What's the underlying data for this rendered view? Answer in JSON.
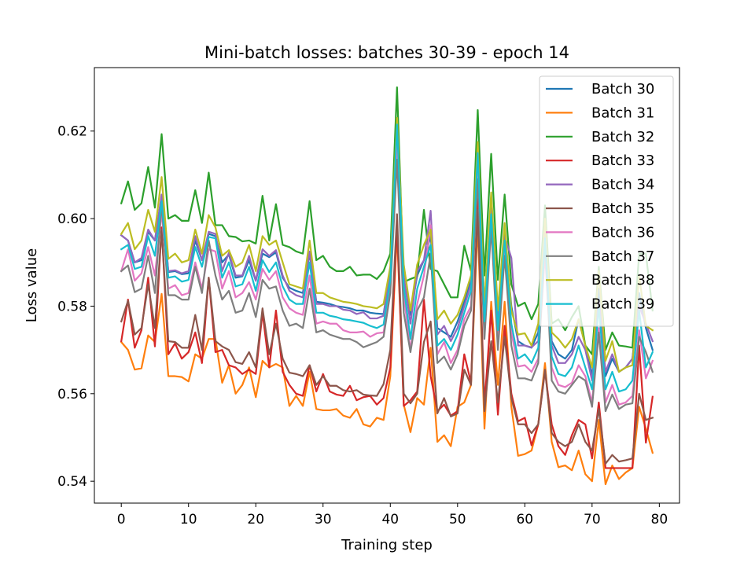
{
  "chart_data": {
    "type": "line",
    "title": "Mini-batch losses: batches 30-39 - epoch 14",
    "xlabel": "Training step",
    "ylabel": "Loss value",
    "xlim": [
      -4,
      83
    ],
    "ylim": [
      0.535,
      0.6345
    ],
    "xticks": [
      0,
      10,
      20,
      30,
      40,
      50,
      60,
      70,
      80
    ],
    "yticks": [
      0.54,
      0.56,
      0.58,
      0.6,
      0.62
    ],
    "ytick_labels": [
      "0.54",
      "0.56",
      "0.58",
      "0.60",
      "0.62"
    ],
    "legend_position": "top-right",
    "grid": false,
    "x": [
      0,
      1,
      2,
      3,
      4,
      5,
      6,
      7,
      8,
      9,
      10,
      11,
      12,
      13,
      14,
      15,
      16,
      17,
      18,
      19,
      20,
      21,
      22,
      23,
      24,
      25,
      26,
      27,
      28,
      29,
      30,
      31,
      32,
      33,
      34,
      35,
      36,
      37,
      38,
      39,
      40,
      41,
      42,
      43,
      44,
      45,
      46,
      47,
      48,
      49,
      50,
      51,
      52,
      53,
      54,
      55,
      56,
      57,
      58,
      59,
      60,
      61,
      62,
      63,
      64,
      65,
      66,
      67,
      68,
      69,
      70,
      71,
      72,
      73,
      74,
      75,
      76,
      77,
      78,
      79
    ],
    "series": [
      {
        "name": "Batch 30",
        "color": "#1f77b4",
        "values": [
          0.5962,
          0.595,
          0.59,
          0.5905,
          0.597,
          0.595,
          0.605,
          0.5878,
          0.588,
          0.5873,
          0.5875,
          0.595,
          0.5905,
          0.5965,
          0.596,
          0.59,
          0.5918,
          0.5865,
          0.5868,
          0.5905,
          0.5858,
          0.592,
          0.5912,
          0.5923,
          0.5865,
          0.5842,
          0.5835,
          0.583,
          0.592,
          0.581,
          0.5808,
          0.5805,
          0.58,
          0.5798,
          0.5795,
          0.579,
          0.579,
          0.5785,
          0.5783,
          0.5782,
          0.588,
          0.622,
          0.586,
          0.578,
          0.587,
          0.5905,
          0.596,
          0.575,
          0.574,
          0.573,
          0.5765,
          0.581,
          0.586,
          0.616,
          0.58,
          0.603,
          0.577,
          0.5965,
          0.58,
          0.572,
          0.571,
          0.5705,
          0.574,
          0.598,
          0.572,
          0.569,
          0.568,
          0.57,
          0.577,
          0.571,
          0.564,
          0.584,
          0.564,
          0.568,
          0.565,
          0.566,
          0.568,
          0.583,
          0.575,
          0.57
        ]
      },
      {
        "name": "Batch 31",
        "color": "#ff7f0e",
        "values": [
          0.5718,
          0.57,
          0.5655,
          0.5658,
          0.5733,
          0.5718,
          0.5828,
          0.564,
          0.564,
          0.5638,
          0.5628,
          0.569,
          0.568,
          0.5725,
          0.5725,
          0.5625,
          0.5665,
          0.56,
          0.562,
          0.566,
          0.5592,
          0.5675,
          0.566,
          0.5668,
          0.566,
          0.5572,
          0.5595,
          0.5572,
          0.565,
          0.5565,
          0.5562,
          0.5562,
          0.5565,
          0.555,
          0.5545,
          0.5565,
          0.553,
          0.5525,
          0.5545,
          0.554,
          0.564,
          0.597,
          0.5575,
          0.5512,
          0.559,
          0.5575,
          0.5705,
          0.549,
          0.5505,
          0.548,
          0.557,
          0.558,
          0.562,
          0.599,
          0.552,
          0.581,
          0.562,
          0.581,
          0.557,
          0.5458,
          0.5462,
          0.547,
          0.553,
          0.567,
          0.549,
          0.5432,
          0.5436,
          0.5425,
          0.547,
          0.5416,
          0.54,
          0.554,
          0.5393,
          0.5436,
          0.5405,
          0.542,
          0.543,
          0.557,
          0.552,
          0.5465
        ]
      },
      {
        "name": "Batch 32",
        "color": "#2ca02c",
        "values": [
          0.6035,
          0.6085,
          0.602,
          0.6035,
          0.6118,
          0.6025,
          0.6193,
          0.6,
          0.6008,
          0.5995,
          0.5995,
          0.6065,
          0.599,
          0.6105,
          0.5985,
          0.5985,
          0.596,
          0.5958,
          0.5948,
          0.595,
          0.5943,
          0.6052,
          0.595,
          0.6033,
          0.594,
          0.5935,
          0.5925,
          0.592,
          0.604,
          0.5905,
          0.5915,
          0.589,
          0.588,
          0.588,
          0.589,
          0.587,
          0.5872,
          0.5872,
          0.5862,
          0.588,
          0.592,
          0.63,
          0.5855,
          0.5862,
          0.5868,
          0.602,
          0.5885,
          0.588,
          0.585,
          0.582,
          0.582,
          0.5938,
          0.588,
          0.6248,
          0.587,
          0.6148,
          0.586,
          0.6055,
          0.585,
          0.58,
          0.5808,
          0.577,
          0.5805,
          0.603,
          0.576,
          0.577,
          0.5745,
          0.5775,
          0.58,
          0.571,
          0.569,
          0.589,
          0.57,
          0.574,
          0.571,
          0.5708,
          0.5705,
          0.592,
          0.592,
          0.579
        ]
      },
      {
        "name": "Batch 33",
        "color": "#d62728",
        "values": [
          0.572,
          0.5815,
          0.5705,
          0.5745,
          0.5865,
          0.5708,
          0.598,
          0.569,
          0.5715,
          0.568,
          0.5695,
          0.574,
          0.567,
          0.5865,
          0.5695,
          0.57,
          0.5665,
          0.566,
          0.5645,
          0.5655,
          0.5645,
          0.5785,
          0.566,
          0.579,
          0.565,
          0.562,
          0.56,
          0.5595,
          0.5665,
          0.5605,
          0.5645,
          0.5605,
          0.5598,
          0.5595,
          0.5618,
          0.5585,
          0.5592,
          0.5595,
          0.5575,
          0.559,
          0.566,
          0.5985,
          0.5572,
          0.5585,
          0.5605,
          0.5815,
          0.564,
          0.556,
          0.5575,
          0.555,
          0.556,
          0.569,
          0.5625,
          0.6045,
          0.5575,
          0.579,
          0.5552,
          0.5755,
          0.56,
          0.5537,
          0.5545,
          0.5482,
          0.553,
          0.5652,
          0.553,
          0.548,
          0.546,
          0.5505,
          0.554,
          0.553,
          0.5452,
          0.558,
          0.543,
          0.543,
          0.543,
          0.543,
          0.543,
          0.571,
          0.5488,
          0.5593
        ]
      },
      {
        "name": "Batch 34",
        "color": "#9467bd",
        "values": [
          0.5962,
          0.595,
          0.59,
          0.591,
          0.5975,
          0.595,
          0.6055,
          0.588,
          0.5882,
          0.5875,
          0.588,
          0.596,
          0.5905,
          0.597,
          0.5965,
          0.588,
          0.5922,
          0.587,
          0.587,
          0.5915,
          0.5858,
          0.593,
          0.5915,
          0.5928,
          0.587,
          0.5835,
          0.5825,
          0.582,
          0.5925,
          0.5805,
          0.5805,
          0.58,
          0.58,
          0.5792,
          0.579,
          0.5782,
          0.5786,
          0.5772,
          0.5772,
          0.5778,
          0.588,
          0.62,
          0.587,
          0.576,
          0.588,
          0.5905,
          0.6018,
          0.5735,
          0.5755,
          0.572,
          0.575,
          0.58,
          0.585,
          0.6145,
          0.578,
          0.602,
          0.577,
          0.596,
          0.591,
          0.571,
          0.571,
          0.5706,
          0.572,
          0.5975,
          0.571,
          0.567,
          0.567,
          0.569,
          0.573,
          0.57,
          0.563,
          0.5815,
          0.565,
          0.569,
          0.565,
          0.566,
          0.568,
          0.58,
          0.576,
          0.572
        ]
      },
      {
        "name": "Batch 35",
        "color": "#8c564b",
        "values": [
          0.5765,
          0.5812,
          0.5735,
          0.575,
          0.585,
          0.575,
          0.5975,
          0.572,
          0.5718,
          0.5705,
          0.5705,
          0.578,
          0.57,
          0.5865,
          0.572,
          0.5708,
          0.57,
          0.5672,
          0.5668,
          0.5695,
          0.566,
          0.5795,
          0.569,
          0.576,
          0.568,
          0.5648,
          0.5645,
          0.564,
          0.5665,
          0.562,
          0.564,
          0.5618,
          0.5618,
          0.5608,
          0.5605,
          0.5608,
          0.5598,
          0.5596,
          0.5595,
          0.5622,
          0.57,
          0.601,
          0.56,
          0.5578,
          0.56,
          0.5718,
          0.5765,
          0.5555,
          0.559,
          0.5548,
          0.5555,
          0.5655,
          0.562,
          0.602,
          0.556,
          0.572,
          0.558,
          0.573,
          0.559,
          0.553,
          0.553,
          0.551,
          0.553,
          0.5655,
          0.551,
          0.549,
          0.548,
          0.549,
          0.553,
          0.549,
          0.547,
          0.5565,
          0.544,
          0.546,
          0.5445,
          0.5448,
          0.5452,
          0.56,
          0.554,
          0.5545
        ]
      },
      {
        "name": "Batch 36",
        "color": "#e377c2",
        "values": [
          0.588,
          0.593,
          0.5858,
          0.5875,
          0.5935,
          0.587,
          0.6015,
          0.584,
          0.5848,
          0.5825,
          0.583,
          0.59,
          0.584,
          0.593,
          0.5925,
          0.584,
          0.588,
          0.582,
          0.583,
          0.5855,
          0.5815,
          0.5885,
          0.586,
          0.588,
          0.582,
          0.5795,
          0.5785,
          0.578,
          0.587,
          0.576,
          0.5765,
          0.576,
          0.576,
          0.5745,
          0.574,
          0.574,
          0.5742,
          0.573,
          0.5738,
          0.574,
          0.584,
          0.617,
          0.5825,
          0.57,
          0.5805,
          0.587,
          0.5985,
          0.569,
          0.5718,
          0.567,
          0.57,
          0.577,
          0.58,
          0.611,
          0.574,
          0.5985,
          0.572,
          0.5925,
          0.574,
          0.5662,
          0.5665,
          0.565,
          0.568,
          0.592,
          0.566,
          0.562,
          0.5615,
          0.5625,
          0.5665,
          0.564,
          0.558,
          0.575,
          0.558,
          0.562,
          0.5575,
          0.558,
          0.5595,
          0.5745,
          0.5635,
          0.5675
        ]
      },
      {
        "name": "Batch 37",
        "color": "#7f7f7f",
        "values": [
          0.588,
          0.5893,
          0.5832,
          0.584,
          0.5915,
          0.583,
          0.6035,
          0.5825,
          0.5825,
          0.5815,
          0.5815,
          0.589,
          0.583,
          0.595,
          0.587,
          0.5815,
          0.5835,
          0.5785,
          0.579,
          0.583,
          0.5775,
          0.586,
          0.584,
          0.5845,
          0.579,
          0.5755,
          0.576,
          0.575,
          0.584,
          0.574,
          0.5745,
          0.5735,
          0.573,
          0.5725,
          0.5725,
          0.5718,
          0.5706,
          0.5712,
          0.5718,
          0.573,
          0.583,
          0.6135,
          0.5785,
          0.5695,
          0.579,
          0.582,
          0.592,
          0.567,
          0.5685,
          0.5655,
          0.569,
          0.5755,
          0.579,
          0.609,
          0.5725,
          0.598,
          0.57,
          0.5915,
          0.571,
          0.5635,
          0.5635,
          0.563,
          0.567,
          0.595,
          0.563,
          0.5605,
          0.56,
          0.562,
          0.564,
          0.563,
          0.557,
          0.574,
          0.556,
          0.5598,
          0.5565,
          0.5575,
          0.5578,
          0.573,
          0.5695,
          0.565
        ]
      },
      {
        "name": "Batch 38",
        "color": "#bcbd22",
        "values": [
          0.5965,
          0.599,
          0.593,
          0.595,
          0.602,
          0.597,
          0.6095,
          0.5908,
          0.592,
          0.59,
          0.5905,
          0.5975,
          0.592,
          0.6008,
          0.598,
          0.5915,
          0.5928,
          0.589,
          0.59,
          0.594,
          0.588,
          0.596,
          0.594,
          0.595,
          0.59,
          0.585,
          0.5845,
          0.584,
          0.595,
          0.583,
          0.583,
          0.582,
          0.5815,
          0.581,
          0.5808,
          0.5805,
          0.58,
          0.5798,
          0.5795,
          0.5805,
          0.589,
          0.623,
          0.5895,
          0.579,
          0.5895,
          0.594,
          0.5975,
          0.577,
          0.579,
          0.576,
          0.578,
          0.582,
          0.587,
          0.6175,
          0.58,
          0.606,
          0.579,
          0.599,
          0.579,
          0.5735,
          0.5738,
          0.571,
          0.576,
          0.6,
          0.574,
          0.5725,
          0.5705,
          0.5725,
          0.577,
          0.571,
          0.566,
          0.588,
          0.5675,
          0.572,
          0.565,
          0.566,
          0.5665,
          0.587,
          0.5755,
          0.5745
        ]
      },
      {
        "name": "Batch 39",
        "color": "#17becf",
        "values": [
          0.593,
          0.594,
          0.5885,
          0.589,
          0.596,
          0.5915,
          0.604,
          0.5865,
          0.5868,
          0.5856,
          0.586,
          0.5935,
          0.589,
          0.5958,
          0.5955,
          0.5865,
          0.59,
          0.5845,
          0.585,
          0.589,
          0.5835,
          0.5905,
          0.5878,
          0.59,
          0.5845,
          0.5815,
          0.5805,
          0.5805,
          0.59,
          0.5785,
          0.5785,
          0.5778,
          0.5775,
          0.577,
          0.5768,
          0.5765,
          0.5762,
          0.5755,
          0.575,
          0.5758,
          0.586,
          0.6215,
          0.5845,
          0.5725,
          0.584,
          0.589,
          0.594,
          0.571,
          0.5725,
          0.57,
          0.5735,
          0.5785,
          0.5835,
          0.615,
          0.5765,
          0.601,
          0.5745,
          0.595,
          0.576,
          0.568,
          0.569,
          0.567,
          0.5705,
          0.5955,
          0.5685,
          0.5645,
          0.564,
          0.566,
          0.571,
          0.566,
          0.561,
          0.58,
          0.561,
          0.565,
          0.5605,
          0.561,
          0.563,
          0.579,
          0.566,
          0.5695
        ]
      }
    ]
  }
}
